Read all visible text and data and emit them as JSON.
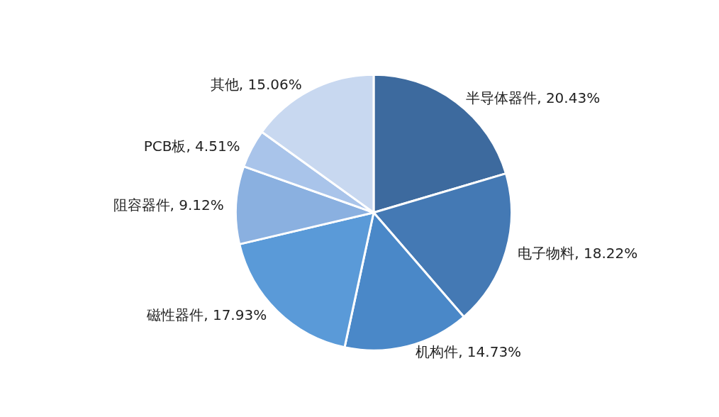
{
  "chart_data": {
    "type": "pie",
    "categories": [
      "半导体器件",
      "电子物料",
      "机构件",
      "磁性器件",
      "阻容器件",
      "PCB板",
      "其他"
    ],
    "values": [
      20.43,
      18.22,
      14.73,
      17.93,
      9.12,
      4.51,
      15.06
    ],
    "colors": [
      "#3d6a9e",
      "#4479b4",
      "#4a88c8",
      "#5a9ad8",
      "#8ab0e0",
      "#a9c4ea",
      "#c8d8f0"
    ],
    "value_labels": [
      "20.43%",
      "18.22%",
      "14.73%",
      "17.93%",
      "9.12%",
      "4.51%",
      "15.06%"
    ],
    "legend": false
  }
}
